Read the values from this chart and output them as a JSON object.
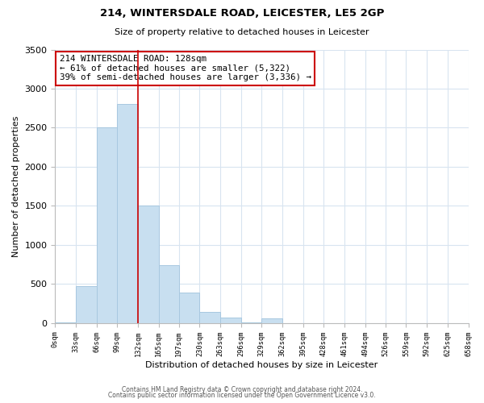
{
  "title": "214, WINTERSDALE ROAD, LEICESTER, LE5 2GP",
  "subtitle": "Size of property relative to detached houses in Leicester",
  "xlabel": "Distribution of detached houses by size in Leicester",
  "ylabel": "Number of detached properties",
  "bar_color": "#c8dff0",
  "bar_edge_color": "#a8c8e0",
  "vline_color": "#cc0000",
  "vline_x": 132,
  "annotation_title": "214 WINTERSDALE ROAD: 128sqm",
  "annotation_line1": "← 61% of detached houses are smaller (5,322)",
  "annotation_line2": "39% of semi-detached houses are larger (3,336) →",
  "annotation_box_color": "#ffffff",
  "annotation_box_edge": "#cc0000",
  "bin_edges": [
    0,
    33,
    66,
    99,
    132,
    165,
    197,
    230,
    263,
    296,
    329,
    362,
    395,
    428,
    461,
    494,
    526,
    559,
    592,
    625,
    658
  ],
  "bin_counts": [
    5,
    470,
    2500,
    2800,
    1500,
    740,
    390,
    145,
    70,
    5,
    55,
    0,
    0,
    0,
    0,
    0,
    0,
    0,
    0,
    0
  ],
  "ylim": [
    0,
    3500
  ],
  "yticks": [
    0,
    500,
    1000,
    1500,
    2000,
    2500,
    3000,
    3500
  ],
  "footer1": "Contains HM Land Registry data © Crown copyright and database right 2024.",
  "footer2": "Contains public sector information licensed under the Open Government Licence v3.0.",
  "bg_color": "#ffffff",
  "grid_color": "#d8e4f0"
}
